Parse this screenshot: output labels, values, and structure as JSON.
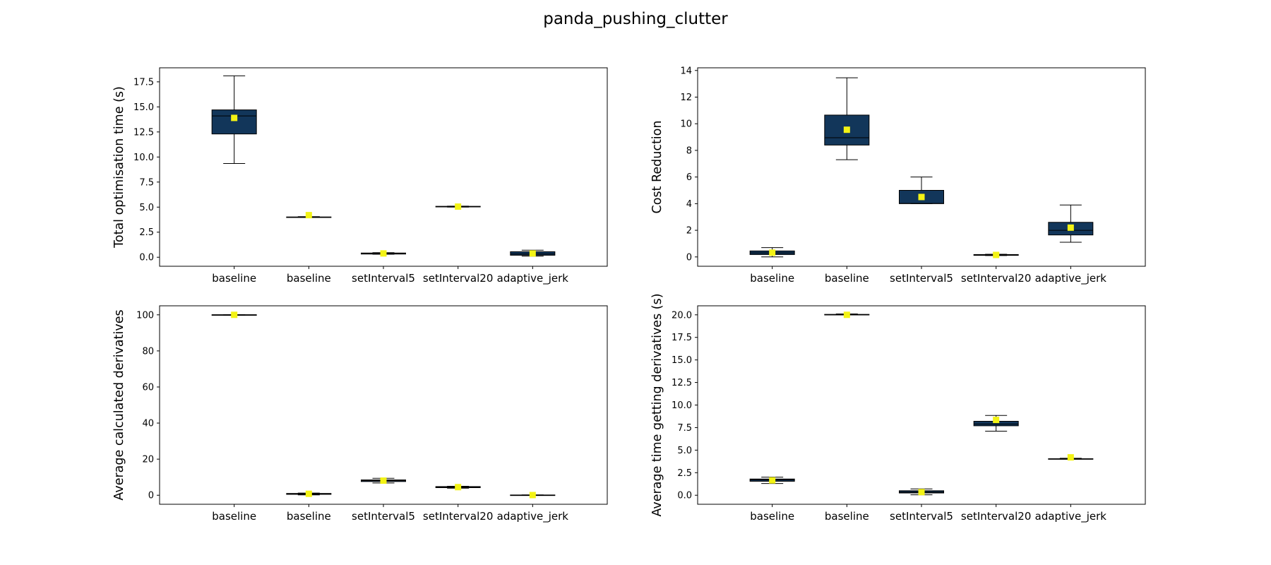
{
  "figure": {
    "title": "panda_pushing_clutter"
  },
  "colors": {
    "box_fill": "#12365a",
    "mean_marker": "#f3f315",
    "line": "#000000"
  },
  "chart_data": [
    {
      "type": "box",
      "ylabel": "Total optimisation time (s)",
      "ylim": [
        -0.9,
        18.9
      ],
      "yticks": [
        0.0,
        2.5,
        5.0,
        7.5,
        10.0,
        12.5,
        15.0,
        17.5
      ],
      "ytick_labels": [
        "0.0",
        "2.5",
        "5.0",
        "7.5",
        "10.0",
        "12.5",
        "15.0",
        "17.5"
      ],
      "categories": [
        "baseline",
        "baseline",
        "setInterval5",
        "setInterval20",
        "adaptive_jerk"
      ],
      "boxes": [
        {
          "whislo": 9.35,
          "q1": 12.3,
          "med": 14.1,
          "q3": 14.7,
          "whishi": 18.1,
          "mean": 13.9
        },
        {
          "whislo": 4.0,
          "q1": 4.0,
          "med": 4.0,
          "q3": 4.02,
          "whishi": 4.05,
          "mean": 4.2
        },
        {
          "whislo": 0.3,
          "q1": 0.32,
          "med": 0.38,
          "q3": 0.42,
          "whishi": 0.46,
          "mean": 0.38
        },
        {
          "whislo": 5.0,
          "q1": 5.02,
          "med": 5.05,
          "q3": 5.08,
          "whishi": 5.1,
          "mean": 5.05
        },
        {
          "whislo": 0.1,
          "q1": 0.2,
          "med": 0.32,
          "q3": 0.55,
          "whishi": 0.7,
          "mean": 0.38
        }
      ]
    },
    {
      "type": "box",
      "ylabel": "Cost Reduction",
      "ylim": [
        -0.7,
        14.2
      ],
      "yticks": [
        0,
        2,
        4,
        6,
        8,
        10,
        12,
        14
      ],
      "ytick_labels": [
        "0",
        "2",
        "4",
        "6",
        "8",
        "10",
        "12",
        "14"
      ],
      "categories": [
        "baseline",
        "baseline",
        "setInterval5",
        "setInterval20",
        "adaptive_jerk"
      ],
      "boxes": [
        {
          "whislo": 0.0,
          "q1": 0.18,
          "med": 0.3,
          "q3": 0.45,
          "whishi": 0.7,
          "mean": 0.32
        },
        {
          "whislo": 7.3,
          "q1": 8.4,
          "med": 8.95,
          "q3": 10.65,
          "whishi": 13.45,
          "mean": 9.55
        },
        {
          "whislo": 4.0,
          "q1": 4.0,
          "med": 4.02,
          "q3": 5.0,
          "whishi": 6.0,
          "mean": 4.5
        },
        {
          "whislo": 0.1,
          "q1": 0.12,
          "med": 0.15,
          "q3": 0.18,
          "whishi": 0.2,
          "mean": 0.15
        },
        {
          "whislo": 1.1,
          "q1": 1.65,
          "med": 2.0,
          "q3": 2.6,
          "whishi": 3.9,
          "mean": 2.2
        }
      ]
    },
    {
      "type": "box",
      "ylabel": "Average calculated derivatives",
      "ylim": [
        -5,
        105
      ],
      "yticks": [
        0,
        20,
        40,
        60,
        80,
        100
      ],
      "ytick_labels": [
        "0",
        "20",
        "40",
        "60",
        "80",
        "100"
      ],
      "categories": [
        "baseline",
        "baseline",
        "setInterval5",
        "setInterval20",
        "adaptive_jerk"
      ],
      "boxes": [
        {
          "whislo": 99.8,
          "q1": 99.9,
          "med": 100.0,
          "q3": 100.05,
          "whishi": 100.1,
          "mean": 100.0
        },
        {
          "whislo": 0.2,
          "q1": 0.5,
          "med": 0.8,
          "q3": 1.0,
          "whishi": 1.2,
          "mean": 0.8
        },
        {
          "whislo": 6.8,
          "q1": 7.6,
          "med": 8.1,
          "q3": 8.5,
          "whishi": 9.4,
          "mean": 8.1
        },
        {
          "whislo": 3.9,
          "q1": 4.2,
          "med": 4.5,
          "q3": 4.8,
          "whishi": 5.0,
          "mean": 4.5
        },
        {
          "whislo": -0.1,
          "q1": 0.0,
          "med": 0.1,
          "q3": 0.15,
          "whishi": 0.2,
          "mean": 0.1
        }
      ]
    },
    {
      "type": "box",
      "ylabel": "Average time getting derivatives (s)",
      "ylim": [
        -1.0,
        21.0
      ],
      "yticks": [
        0.0,
        2.5,
        5.0,
        7.5,
        10.0,
        12.5,
        15.0,
        17.5,
        20.0
      ],
      "ytick_labels": [
        "0.0",
        "2.5",
        "5.0",
        "7.5",
        "10.0",
        "12.5",
        "15.0",
        "17.5",
        "20.0"
      ],
      "categories": [
        "baseline",
        "baseline",
        "setInterval5",
        "setInterval20",
        "adaptive_jerk"
      ],
      "boxes": [
        {
          "whislo": 1.3,
          "q1": 1.55,
          "med": 1.7,
          "q3": 1.8,
          "whishi": 2.0,
          "mean": 1.65
        },
        {
          "whislo": 20.0,
          "q1": 20.0,
          "med": 20.0,
          "q3": 20.05,
          "whishi": 20.1,
          "mean": 20.0
        },
        {
          "whislo": 0.05,
          "q1": 0.25,
          "med": 0.35,
          "q3": 0.5,
          "whishi": 0.7,
          "mean": 0.35
        },
        {
          "whislo": 7.1,
          "q1": 7.7,
          "med": 7.9,
          "q3": 8.2,
          "whishi": 8.85,
          "mean": 8.35
        },
        {
          "whislo": 4.0,
          "q1": 4.0,
          "med": 4.02,
          "q3": 4.05,
          "whishi": 4.1,
          "mean": 4.2
        }
      ]
    }
  ]
}
